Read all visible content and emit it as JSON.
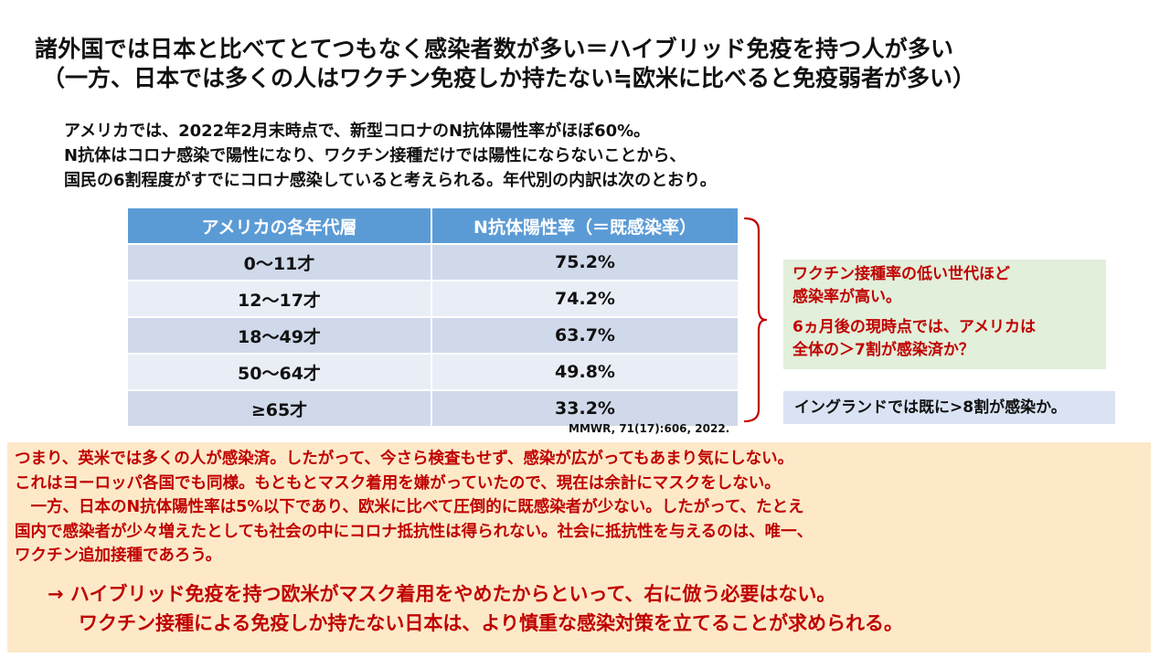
{
  "title": {
    "line1": "諸外国では日本と比べてとてつもなく感染者数が多い＝ハイブリッド免疫を持つ人が多い",
    "line2": "（一方、日本では多くの人はワクチン免疫しか持たない≒欧米に比べると免疫弱者が多い）"
  },
  "intro": [
    "アメリカでは、2022年2月末時点で、新型コロナのN抗体陽性率がほぼ60%。",
    "N抗体はコロナ感染で陽性になり、ワクチン接種だけでは陽性にならないことから、",
    "国民の6割程度がすでにコロナ感染していると考えられる。年代別の内訳は次のとおり。"
  ],
  "table": {
    "headers": [
      "アメリカの各年代層",
      "N抗体陽性率（＝既感染率）"
    ],
    "rows": [
      [
        "0〜11才",
        "75.2%"
      ],
      [
        "12〜17才",
        "74.2%"
      ],
      [
        "18〜49才",
        "63.7%"
      ],
      [
        "50〜64才",
        "49.8%"
      ],
      [
        "≥65才",
        "33.2%"
      ]
    ]
  },
  "citation": "MMWR, 71(17):606, 2022.",
  "note_green": {
    "line1": "ワクチン接種率の低い世代ほど",
    "line2": "感染率が高い。",
    "line3": "6ヵ月後の現時点では、アメリカは",
    "line4": "全体の＞7割が感染済か？"
  },
  "note_blue": "イングランドでは既に>8割が感染か。",
  "conclusion": {
    "lines": [
      "つまり、英米では多くの人が感染済。したがって、今さら検査もせず、感染が広がってもあまり気にしない。",
      "これはヨーロッパ各国でも同様。もともとマスク着用を嫌がっていたので、現在は余計にマスクをしない。",
      "　一方、日本のN抗体陽性率は5%以下であり、欧米に比べて圧倒的に既感染者が少ない。したがって、たとえ",
      "国内で感染者が少々増えたとしても社会の中にコロナ抵抗性は得られない。社会に抵抗性を与えるのは、唯一、",
      "ワクチン追加接種であろう。"
    ],
    "arrow_line1": "→ ハイブリッド免疫を持つ欧米がマスク着用をやめたからといって、右に倣う必要はない。",
    "arrow_line2": "ワクチン接種による免疫しか持たない日本は、より慎重な感染対策を立てることが求められる。"
  },
  "colors": {
    "header_bg": "#5b9bd5",
    "row_dark": "#cfd9ea",
    "row_light": "#e9eef6",
    "accent_red": "#c00000",
    "green_box": "#e2efda",
    "blue_box": "#dae3f3",
    "conclusion_bg": "#fde9c8"
  }
}
